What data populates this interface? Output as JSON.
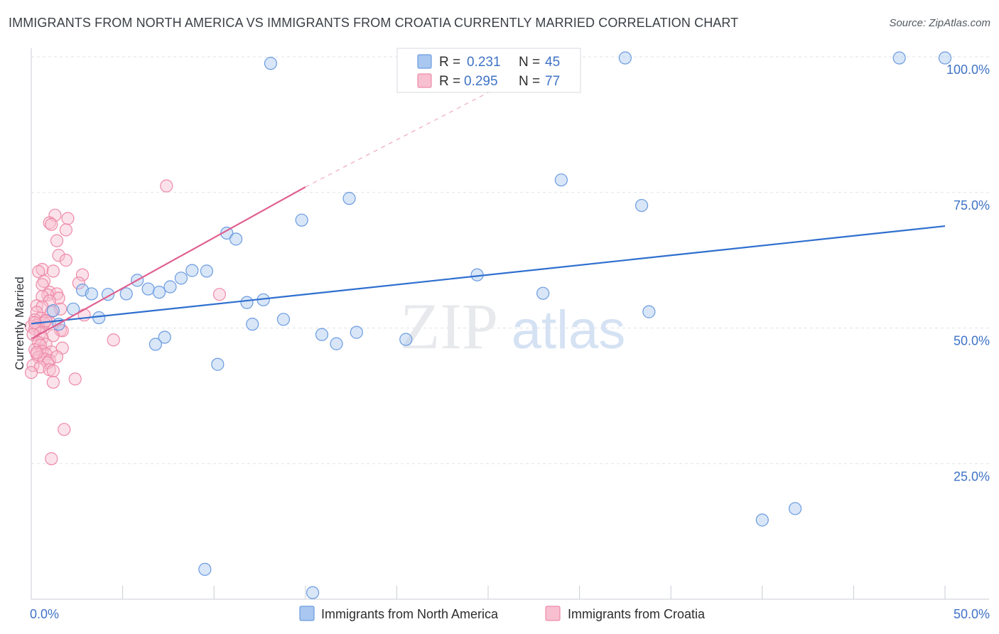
{
  "header": {
    "title": "IMMIGRANTS FROM NORTH AMERICA VS IMMIGRANTS FROM CROATIA CURRENTLY MARRIED CORRELATION CHART",
    "source": "Source: ZipAtlas.com"
  },
  "watermark": {
    "zip": "ZIP",
    "atlas": "atlas"
  },
  "colors": {
    "blue": "#6b9be0",
    "blue_fill": "#a9c7f0",
    "blue_line": "#2f6fcf",
    "pink": "#ee8aa8",
    "pink_fill": "#f7bfd0",
    "pink_line": "#e06090",
    "tick_text": "#3e73c6",
    "grid": "#dfe3e8"
  },
  "legend": {
    "r_label": "R =",
    "n_label": "N =",
    "series": [
      {
        "r": "0.231",
        "n": "45"
      },
      {
        "r": "0.295",
        "n": "77"
      }
    ]
  },
  "chart_data": {
    "type": "scatter",
    "title": "IMMIGRANTS FROM NORTH AMERICA VS IMMIGRANTS FROM CROATIA CURRENTLY MARRIED CORRELATION CHART",
    "xlabel": "",
    "ylabel": "Currently Married",
    "xlim": [
      0,
      50
    ],
    "ylim": [
      0,
      102
    ],
    "x_tick_labels": [
      "0.0%",
      "50.0%"
    ],
    "y_tick_labels": [
      "100.0%",
      "75.0%",
      "50.0%",
      "25.0%"
    ],
    "y_ticks": [
      100,
      75,
      50,
      25
    ],
    "grid": true,
    "series": [
      {
        "name": "Immigrants from North America",
        "r": 0.231,
        "n": 45,
        "trend": {
          "x0": 0.0,
          "y0": 50.8,
          "x1": 50.0,
          "y1": 68.8
        },
        "points": [
          [
            13.1,
            98.8
          ],
          [
            32.5,
            99.8
          ],
          [
            47.5,
            99.8
          ],
          [
            50.0,
            99.8
          ],
          [
            29.0,
            77.3
          ],
          [
            17.4,
            73.9
          ],
          [
            33.4,
            72.6
          ],
          [
            14.8,
            69.9
          ],
          [
            10.7,
            67.5
          ],
          [
            11.2,
            66.4
          ],
          [
            8.8,
            60.6
          ],
          [
            9.6,
            60.5
          ],
          [
            8.2,
            59.2
          ],
          [
            24.4,
            59.8
          ],
          [
            5.8,
            58.8
          ],
          [
            7.6,
            57.6
          ],
          [
            6.4,
            57.2
          ],
          [
            7.0,
            56.6
          ],
          [
            2.8,
            57.0
          ],
          [
            3.3,
            56.3
          ],
          [
            4.2,
            56.2
          ],
          [
            5.2,
            56.3
          ],
          [
            28.0,
            56.4
          ],
          [
            12.7,
            55.2
          ],
          [
            11.8,
            54.7
          ],
          [
            2.3,
            53.5
          ],
          [
            1.2,
            53.2
          ],
          [
            3.7,
            51.9
          ],
          [
            13.8,
            51.6
          ],
          [
            12.1,
            50.7
          ],
          [
            1.5,
            50.7
          ],
          [
            33.8,
            53.0
          ],
          [
            15.9,
            48.8
          ],
          [
            16.7,
            47.1
          ],
          [
            17.8,
            49.2
          ],
          [
            20.5,
            47.9
          ],
          [
            7.3,
            48.3
          ],
          [
            6.8,
            47.0
          ],
          [
            10.2,
            43.3
          ],
          [
            40.0,
            14.6
          ],
          [
            41.8,
            16.7
          ],
          [
            9.5,
            5.5
          ],
          [
            15.4,
            1.2
          ]
        ]
      },
      {
        "name": "Immigrants from Croatia",
        "r": 0.295,
        "n": 77,
        "trend": {
          "x0": 0.0,
          "y0": 48.0,
          "x1": 15.0,
          "y1": 76.0,
          "dash_to_x": 28.5,
          "dash_to_y": 99.5
        },
        "points": [
          [
            7.4,
            76.2
          ],
          [
            1.3,
            70.8
          ],
          [
            2.0,
            70.2
          ],
          [
            1.0,
            69.4
          ],
          [
            1.1,
            69.1
          ],
          [
            1.9,
            68.1
          ],
          [
            1.4,
            66.1
          ],
          [
            1.5,
            63.4
          ],
          [
            1.9,
            62.5
          ],
          [
            0.6,
            60.8
          ],
          [
            0.4,
            60.4
          ],
          [
            1.2,
            60.5
          ],
          [
            2.8,
            59.8
          ],
          [
            0.7,
            58.6
          ],
          [
            0.6,
            58.0
          ],
          [
            2.6,
            58.3
          ],
          [
            1.0,
            56.6
          ],
          [
            1.4,
            56.3
          ],
          [
            0.9,
            56.1
          ],
          [
            1.5,
            55.5
          ],
          [
            0.6,
            55.8
          ],
          [
            1.0,
            55.0
          ],
          [
            10.3,
            56.2
          ],
          [
            0.3,
            54.1
          ],
          [
            0.6,
            53.9
          ],
          [
            1.6,
            53.5
          ],
          [
            1.1,
            53.0
          ],
          [
            0.3,
            52.9
          ],
          [
            2.9,
            52.4
          ],
          [
            0.5,
            51.8
          ],
          [
            0.2,
            51.5
          ],
          [
            0.8,
            51.4
          ],
          [
            1.0,
            51.0
          ],
          [
            0.7,
            50.9
          ],
          [
            0.3,
            50.5
          ],
          [
            0.0,
            50.3
          ],
          [
            0.4,
            50.1
          ],
          [
            0.2,
            49.8
          ],
          [
            1.6,
            49.6
          ],
          [
            1.7,
            49.5
          ],
          [
            0.5,
            49.1
          ],
          [
            1.2,
            48.6
          ],
          [
            0.1,
            48.8
          ],
          [
            0.6,
            48.1
          ],
          [
            4.5,
            47.8
          ],
          [
            0.4,
            47.3
          ],
          [
            0.8,
            47.0
          ],
          [
            0.5,
            46.8
          ],
          [
            1.7,
            46.3
          ],
          [
            0.2,
            46.0
          ],
          [
            0.6,
            45.7
          ],
          [
            0.3,
            45.2
          ],
          [
            1.1,
            45.6
          ],
          [
            0.8,
            45.2
          ],
          [
            0.4,
            44.6
          ],
          [
            0.7,
            44.3
          ],
          [
            1.0,
            44.0
          ],
          [
            1.4,
            44.7
          ],
          [
            0.9,
            43.6
          ],
          [
            0.1,
            43.1
          ],
          [
            0.5,
            42.8
          ],
          [
            1.0,
            42.3
          ],
          [
            1.2,
            42.1
          ],
          [
            0.0,
            41.8
          ],
          [
            2.4,
            40.6
          ],
          [
            1.2,
            40.0
          ],
          [
            0.3,
            45.5
          ],
          [
            0.8,
            51.3
          ],
          [
            0.2,
            51.0
          ],
          [
            1.8,
            31.3
          ],
          [
            1.1,
            25.9
          ]
        ]
      }
    ]
  },
  "bottom_legend": [
    {
      "label": "Immigrants from North America"
    },
    {
      "label": "Immigrants from Croatia"
    }
  ]
}
